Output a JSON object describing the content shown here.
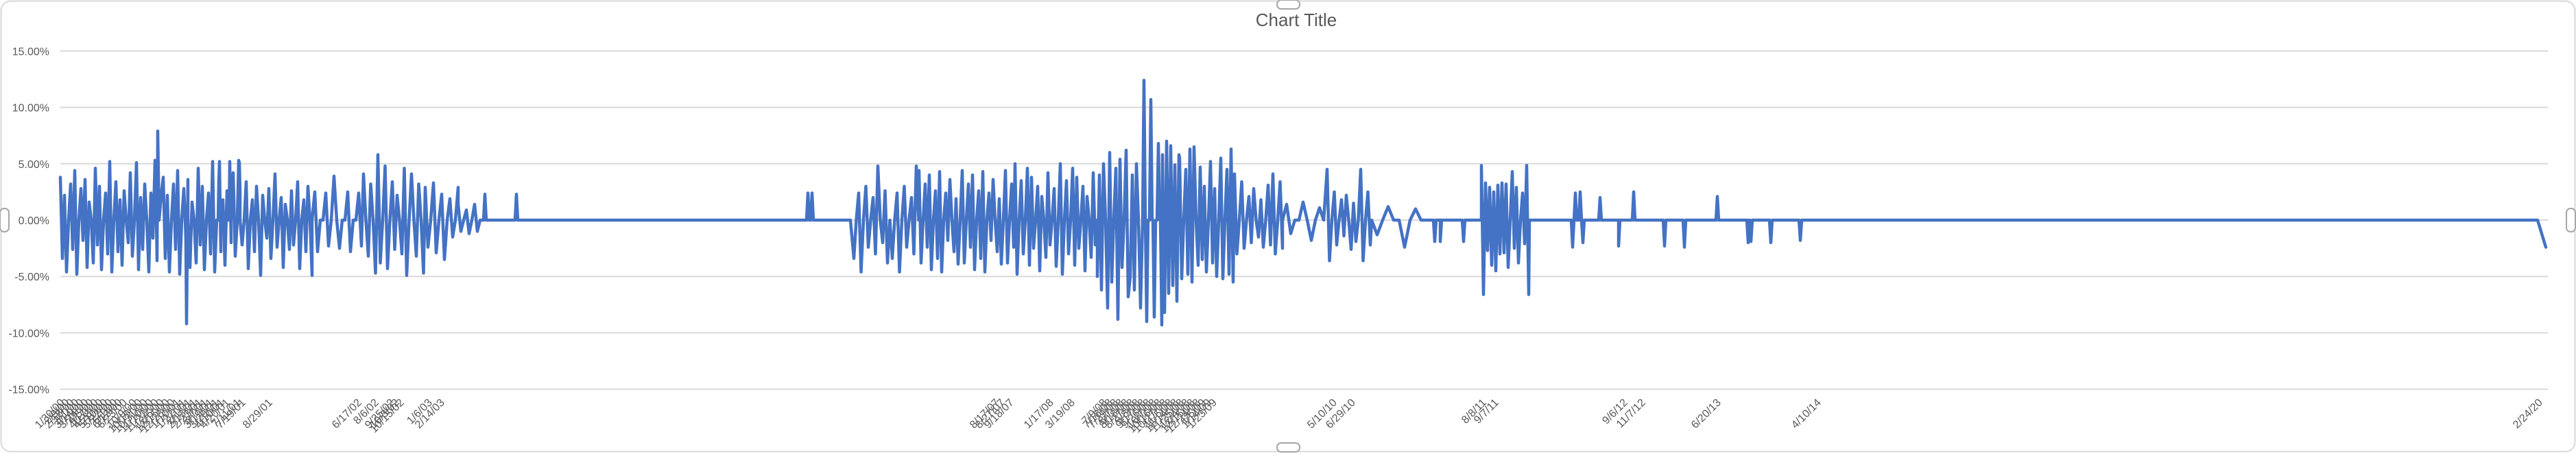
{
  "frame": {
    "background": "#FFFFFF",
    "border_color": "#D9D9D9",
    "handle_fill": "#FFFFFF",
    "handle_border": "#A6A6A6"
  },
  "chart_data": {
    "type": "line",
    "title": "Chart Title",
    "title_color": "#595959",
    "line_color": "#4472C4",
    "gridline_color": "#D9D9D9",
    "axis_label_color": "#595959",
    "grid": true,
    "legend": "none",
    "ylabel": "",
    "xlabel": "",
    "ylim_pct": [
      -15,
      15
    ],
    "yticks": [
      {
        "value": 15,
        "label": "15.00%"
      },
      {
        "value": 10,
        "label": "10.00%"
      },
      {
        "value": 5,
        "label": "5.00%"
      },
      {
        "value": 0,
        "label": "0.00%"
      },
      {
        "value": -5,
        "label": "-5.00%"
      },
      {
        "value": -10,
        "label": "-10.00%"
      },
      {
        "value": -15,
        "label": "-15.00%"
      }
    ],
    "x_axis_labels": [
      [
        "1/30/00",
        95
      ],
      [
        "2/9/00",
        102
      ],
      [
        "2/18/00",
        109
      ],
      [
        "3/1/00",
        116
      ],
      [
        "3/14/00",
        123
      ],
      [
        "3/24/00",
        130
      ],
      [
        "4/5/00",
        137
      ],
      [
        "4/17/00",
        144
      ],
      [
        "4/28/00",
        151
      ],
      [
        "5/10/00",
        158
      ],
      [
        "5/22/00",
        165
      ],
      [
        "6/1/00",
        172
      ],
      [
        "6/13/00",
        179
      ],
      [
        "6/23/00",
        186
      ],
      [
        "10/9/00",
        200
      ],
      [
        "10/19/00",
        208
      ],
      [
        "10/31/00",
        216
      ],
      [
        "11/10/00",
        224
      ],
      [
        "11/22/00",
        232
      ],
      [
        "12/5/00",
        240
      ],
      [
        "12/15/00",
        248
      ],
      [
        "12/28/00",
        256
      ],
      [
        "1/10/01",
        264
      ],
      [
        "1/22/01",
        272
      ],
      [
        "2/1/01",
        280
      ],
      [
        "2/13/01",
        288
      ],
      [
        "2/23/01",
        296
      ],
      [
        "3/7/01",
        304
      ],
      [
        "3/19/01",
        312
      ],
      [
        "3/29/01",
        320
      ],
      [
        "4/10/01",
        328
      ],
      [
        "4/20/01",
        336
      ],
      [
        "7/11/01",
        352
      ],
      [
        "7/19/01",
        359
      ],
      [
        "8/29/01",
        398
      ],
      [
        "6/17/02",
        528
      ],
      [
        "8/6/02",
        553
      ],
      [
        "9/25/02",
        576
      ],
      [
        "10/3/02",
        583
      ],
      [
        "10/15/02",
        590
      ],
      [
        "1/6/03",
        631
      ],
      [
        "2/14/03",
        649
      ],
      [
        "8/17/07",
        1458
      ],
      [
        "8/27/07",
        1466
      ],
      [
        "9/18/07",
        1479
      ],
      [
        "1/17/08",
        1537
      ],
      [
        "3/19/08",
        1568
      ],
      [
        "7/9/08",
        1615
      ],
      [
        "7/18/08",
        1623
      ],
      [
        "7/29/08",
        1631
      ],
      [
        "8/7/08",
        1639
      ],
      [
        "8/18/08",
        1647
      ],
      [
        "8/27/08",
        1655
      ],
      [
        "9/8/08",
        1663
      ],
      [
        "9/17/08",
        1671
      ],
      [
        "9/26/08",
        1679
      ],
      [
        "10/7/08",
        1687
      ],
      [
        "10/16/08",
        1695
      ],
      [
        "10/27/08",
        1703
      ],
      [
        "11/5/08",
        1711
      ],
      [
        "11/14/08",
        1719
      ],
      [
        "11/25/08",
        1727
      ],
      [
        "12/4/08",
        1735
      ],
      [
        "12/15/08",
        1743
      ],
      [
        "12/24/08",
        1751
      ],
      [
        "1/5/09",
        1759
      ],
      [
        "1/14/09",
        1767
      ],
      [
        "1/23/09",
        1775
      ],
      [
        "5/10/10",
        1950
      ],
      [
        "6/29/10",
        1977
      ],
      [
        "8/8/11",
        2168
      ],
      [
        "9/7/11",
        2186
      ],
      [
        "9/6/12",
        2374
      ],
      [
        "11/7/12",
        2400
      ],
      [
        "6/20/13",
        2510
      ],
      [
        "4/10/14",
        2656
      ],
      [
        "2/24/20",
        3708
      ]
    ],
    "series_spec": {
      "comment_units": "x = position along date axis (px of plot 88..3715), v = daily return percent",
      "segments": [
        [
          88,
          350,
          3,
          [
            3.8,
            -3.4,
            2.2,
            -4.6,
            0,
            3.2,
            -2.6,
            4.4,
            -4.8,
            0,
            2.8,
            -1.8,
            3.6,
            -4.2,
            1.6,
            0,
            -3.8,
            4.6,
            -2.2,
            3.0,
            -4.4,
            0,
            2.4,
            -3.0,
            5.2,
            -4.6,
            0,
            3.4,
            -2.8,
            1.8,
            -4.0,
            2.6,
            0,
            -2.0,
            4.2,
            -3.2,
            0,
            5.1,
            -4.4,
            2.0,
            -2.6,
            3.2,
            0,
            -4.6,
            2.4,
            -1.6,
            5.3,
            -3.6,
            0,
            2.2
          ]
        ],
        [
          350,
          455,
          3,
          [
            2.6,
            -2.2,
            0,
            3.4,
            -4.3,
            0,
            1.8,
            -2.8,
            3.0,
            0,
            -4.9,
            2.2,
            0,
            -1.6,
            2.8,
            -3.4,
            0,
            4.1,
            -2.4,
            0,
            2.0,
            -4.2,
            1.4,
            0,
            -2.6
          ]
        ],
        [
          455,
          530,
          4,
          [
            0,
            2.5,
            -2.8,
            0,
            0,
            2.4,
            -2.3,
            0,
            3.9,
            0,
            -2.5,
            0
          ]
        ],
        [
          530,
          620,
          3.5,
          [
            4.1,
            0,
            -3.2,
            3.2,
            0,
            -4.7,
            5.8,
            -3.8,
            0,
            4.8,
            -4.3,
            0,
            3.4,
            -2.6,
            2.2,
            0,
            -3.0,
            4.6,
            -4.9,
            0
          ]
        ],
        [
          620,
          668,
          4,
          [
            2.9,
            -2.4,
            0,
            3.3,
            -2.9,
            0,
            2.3,
            -3.5,
            0,
            1.9,
            -1.5,
            0
          ]
        ],
        [
          668,
          700,
          4,
          [
            1.4,
            -1.0,
            0,
            0.9,
            -1.2,
            0
          ]
        ],
        [
          700,
          1170,
          25,
          [
            0
          ]
        ],
        [
          1190,
          1245,
          25,
          [
            0
          ]
        ],
        [
          1245,
          1340,
          3.5,
          [
            -3.4,
            0,
            2.4,
            -4.6,
            0,
            3.0,
            -2.4,
            0,
            2.0,
            -3.0,
            4.8,
            0,
            -2.0,
            2.6,
            -3.8,
            0
          ]
        ],
        [
          1340,
          1480,
          3,
          [
            4.4,
            -3.8,
            0,
            3.2,
            -2.4,
            4.0,
            -4.4,
            0,
            2.6,
            -3.4,
            4.3,
            -4.6,
            0,
            2.4,
            -1.8,
            3.6,
            0,
            -2.8,
            1.9,
            -3.9,
            0
          ]
        ],
        [
          1480,
          1600,
          3,
          [
            5.0,
            -4.8,
            0,
            3.5,
            -3.0,
            0,
            4.6,
            -4.0,
            3.8,
            -2.5,
            0,
            3.0,
            -4.5,
            2.1,
            0,
            -3.3,
            4.2,
            -2.2,
            0,
            2.8,
            -4.1,
            0
          ]
        ],
        [
          1600,
          1664,
          3,
          [
            -5.0,
            4.0,
            -6.2,
            5.0,
            0,
            -7.8,
            6.0,
            -5.5,
            0,
            4.6,
            -8.8,
            5.4,
            -4.2,
            0,
            6.2,
            -6.8
          ]
        ],
        [
          1695,
          1720,
          3,
          [
            5.8,
            -8.2,
            7.0,
            -6.5,
            6.6,
            -5.8,
            4.9,
            -7.2
          ]
        ],
        [
          1720,
          1800,
          3,
          [
            5.5,
            -5.2,
            0,
            4.5,
            -4.8,
            6.3,
            -5.5,
            6.5,
            0,
            -4.0,
            4.7,
            -3.5,
            3.0,
            -4.6,
            0,
            5.2,
            -3.8,
            2.8,
            -5.0,
            0
          ]
        ],
        [
          1800,
          1870,
          3.5,
          [
            4.1,
            -3.0,
            0,
            3.4,
            -2.5,
            0,
            2.1,
            -2.0,
            2.8,
            0,
            -1.5,
            1.8,
            -2.4,
            0,
            3.1,
            -2.2
          ]
        ],
        [
          1870,
          1935,
          6,
          [
            0,
            1.4,
            -1.2,
            0,
            0,
            1.6,
            0,
            -1.8,
            0,
            1.1,
            0,
            -0.9
          ]
        ],
        [
          1935,
          2000,
          3.5,
          [
            4.5,
            -3.6,
            0,
            2.5,
            -2.2,
            0,
            1.8,
            -1.4,
            2.2,
            0,
            -2.6,
            1.5,
            -1.9,
            0
          ]
        ],
        [
          2000,
          2085,
          8,
          [
            0,
            -1.3,
            0,
            1.2,
            0,
            0,
            -2.4,
            0,
            1.0,
            0
          ]
        ],
        [
          2100,
          2160,
          20,
          [
            0
          ]
        ],
        [
          2160,
          2230,
          3,
          [
            4.85,
            -6.6,
            3.3,
            -2.7,
            2.9,
            -4.0,
            2.5,
            -4.5,
            3.1,
            -3.0,
            3.3,
            -2.9,
            3.2,
            -4.2,
            0,
            4.3,
            -2.5,
            2.9,
            -3.8,
            0,
            2.4,
            -2.1
          ]
        ],
        [
          2230,
          3706,
          10,
          [
            0
          ]
        ],
        [
          3712,
          3713,
          5,
          [
            -2.4
          ]
        ]
      ],
      "spikes": [
        [
          230,
          7.9
        ],
        [
          272,
          -9.2
        ],
        [
          320,
          5.2
        ],
        [
          335,
          5.2
        ],
        [
          348,
          5.3
        ],
        [
          707,
          2.3
        ],
        [
          753,
          2.3
        ],
        [
          1178,
          2.4
        ],
        [
          1184,
          2.4
        ],
        [
          1668,
          12.4
        ],
        [
          1672,
          -9.0
        ],
        [
          1678,
          10.7
        ],
        [
          1683,
          -8.6
        ],
        [
          1689,
          6.8
        ],
        [
          1694,
          -9.3
        ],
        [
          2092,
          -1.9
        ],
        [
          2100,
          -1.9
        ],
        [
          2134,
          -1.9
        ],
        [
          2293,
          -2.4
        ],
        [
          2297,
          2.4
        ],
        [
          2304,
          2.5
        ],
        [
          2308,
          -2.0
        ],
        [
          2333,
          2.0
        ],
        [
          2360,
          -2.3
        ],
        [
          2382,
          2.5
        ],
        [
          2427,
          -2.3
        ],
        [
          2456,
          -2.4
        ],
        [
          2504,
          2.1
        ],
        [
          2549,
          -2.0
        ],
        [
          2553,
          -1.9
        ],
        [
          2582,
          -2.0
        ],
        [
          2625,
          -1.8
        ]
      ]
    }
  }
}
